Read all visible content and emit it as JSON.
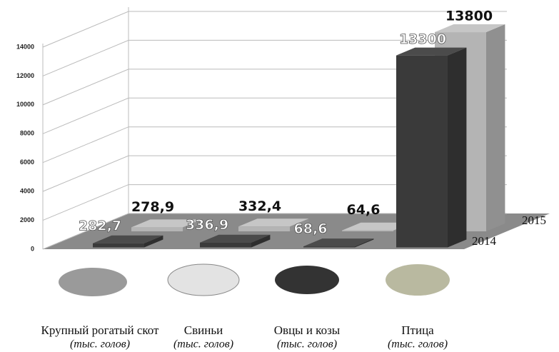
{
  "chart_data": {
    "type": "bar3d",
    "categories": [
      "Крупный рогатый скот",
      "Свиньи",
      "Овцы и козы",
      "Птица"
    ],
    "category_units": [
      "(тыс. голов)",
      "(тыс. голов)",
      "(тыс. голов)",
      "(тыс. голов)"
    ],
    "series": [
      {
        "name": "2014",
        "color": "#3a3a3a",
        "values": [
          282.7,
          336.9,
          68.6,
          13300
        ],
        "value_labels": [
          "282,7",
          "336,9",
          "68,6",
          "13300"
        ]
      },
      {
        "name": "2015",
        "color": "#b4b4b4",
        "values": [
          278.9,
          332.4,
          64.6,
          13800
        ],
        "value_labels": [
          "278,9",
          "332,4",
          "64,6",
          "13800"
        ]
      }
    ],
    "ylim": [
      0,
      14000
    ],
    "yticks": [
      0,
      2000,
      4000,
      6000,
      8000,
      10000,
      12000,
      14000
    ],
    "grid": true
  }
}
